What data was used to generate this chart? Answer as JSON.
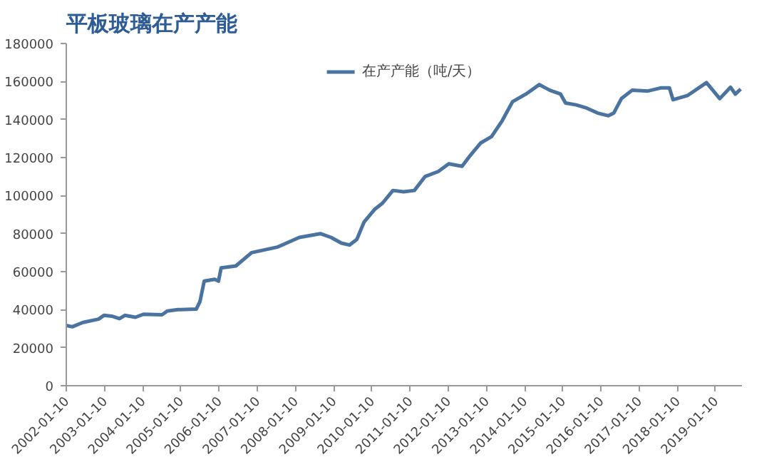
{
  "chart_data": {
    "type": "line",
    "title": "平板玻璃在产产能",
    "x": [
      "2002-01-10",
      "2002-03-08",
      "2002-06-18",
      "2002-11-14",
      "2003-01-05",
      "2003-03-20",
      "2003-06-03",
      "2003-07-24",
      "2003-11-02",
      "2004-01-18",
      "2004-07-13",
      "2004-09-02",
      "2004-12-13",
      "2005-06-06",
      "2005-07-12",
      "2005-08-21",
      "2005-11-29",
      "2006-01-05",
      "2006-01-30",
      "2006-06-20",
      "2006-11-17",
      "2007-07-27",
      "2008-02-17",
      "2008-09-05",
      "2008-12-16",
      "2009-03-26",
      "2009-06-10",
      "2009-08-20",
      "2009-10-27",
      "2010-02-05",
      "2010-04-22",
      "2010-07-31",
      "2010-11-10",
      "2011-02-21",
      "2011-06-03",
      "2011-10-08",
      "2012-01-16",
      "2012-05-22",
      "2012-08-07",
      "2012-11-17",
      "2013-02-28",
      "2013-06-10",
      "2013-09-17",
      "2014-01-23",
      "2014-05-31",
      "2014-09-09",
      "2014-12-20",
      "2015-02-06",
      "2015-05-19",
      "2015-08-29",
      "2015-12-10",
      "2016-03-22",
      "2016-05-12",
      "2016-07-24",
      "2016-11-03",
      "2017-04-04",
      "2017-08-10",
      "2017-10-26",
      "2017-11-30",
      "2018-04-20",
      "2018-10-16",
      "2019-02-20",
      "2019-06-02",
      "2019-07-19",
      "2019-09-08"
    ],
    "series": [
      {
        "name": "在产产能（吨/天）",
        "color": "#4a73a0",
        "values": [
          31700,
          31000,
          33300,
          35000,
          37000,
          36600,
          35300,
          37000,
          36000,
          37600,
          37300,
          39300,
          40000,
          40300,
          44300,
          55000,
          56000,
          55000,
          62000,
          63000,
          70000,
          73000,
          78000,
          80000,
          78000,
          75000,
          74000,
          77000,
          86000,
          92700,
          96000,
          102700,
          102000,
          102700,
          110000,
          112700,
          116700,
          115400,
          121000,
          127700,
          131000,
          139400,
          149400,
          153400,
          158400,
          155400,
          153400,
          148700,
          147700,
          146000,
          143400,
          142000,
          143400,
          151000,
          155400,
          155000,
          156700,
          156700,
          150400,
          152700,
          159400,
          151000,
          157000,
          153400,
          156000
        ]
      }
    ],
    "xlim": [
      "2002-01-10",
      "2019-09-20"
    ],
    "xticks": [
      "2002-01-10",
      "2003-01-10",
      "2004-01-10",
      "2005-01-10",
      "2006-01-10",
      "2007-01-10",
      "2008-01-10",
      "2009-01-10",
      "2010-01-10",
      "2011-01-10",
      "2012-01-10",
      "2013-01-10",
      "2014-01-10",
      "2015-01-10",
      "2016-01-10",
      "2017-01-10",
      "2018-01-10",
      "2019-01-10"
    ],
    "ylim": [
      0,
      180000
    ],
    "yticks": [
      0,
      20000,
      40000,
      60000,
      80000,
      100000,
      120000,
      140000,
      160000,
      180000
    ],
    "grid": false,
    "legend": "top",
    "marker": "none",
    "line_style": "solid"
  }
}
